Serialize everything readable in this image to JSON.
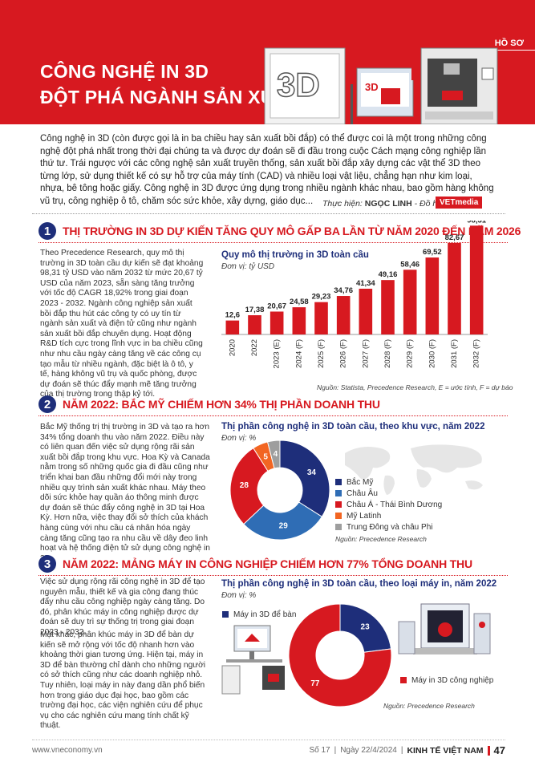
{
  "header": {
    "tag": "HỒ SƠ",
    "title_line1": "CÔNG NGHỆ IN 3D",
    "title_line2": "ĐỘT PHÁ NGÀNH SẢN XUẤT"
  },
  "intro": "Công nghệ in 3D (còn được gọi là in ba chiều hay sản xuất bồi đắp) có thể được coi là một trong những công nghệ đột phá nhất trong thời đại chúng ta và được dự đoán sẽ đi đầu trong cuộc Cách mạng công nghiệp lần thứ tư. Trái ngược với các công nghệ sản xuất truyền thống, sản xuất bồi đắp xây dựng các vật thể 3D theo từng lớp, sử dụng thiết kế có sự hỗ trợ của máy tính (CAD) và nhiều loại vật liệu, chẳng hạn như kim loại, nhựa, bê tông hoặc giấy. Công nghệ in 3D được ứng dụng trong nhiều ngành khác nhau, bao gồm hàng không vũ trụ, công nghiệp ô tô, chăm sóc sức khỏe, xây dựng, giáo dục...",
  "credit": {
    "label1": "Thực hiện:",
    "author": "NGỌC LINH",
    "label2": "- Đồ họa:",
    "brand": "VETmedia"
  },
  "section1": {
    "num": "1",
    "title": "THỊ TRƯỜNG IN 3D DỰ KIẾN TĂNG QUY MÔ GẤP BA LẦN TỪ NĂM 2020 ĐẾN NĂM 2026",
    "text": "Theo Precedence Research, quy mô thị trường in 3D toàn cầu dự kiến sẽ đạt khoảng 98,31 tỷ USD vào năm 2032 từ mức 20,67 tỷ USD của năm 2023, sẵn sàng tăng trưởng với tốc độ CAGR 18,92% trong giai đoạn 2023 - 2032. Ngành công nghiệp sản xuất bồi đắp thu hút các công ty có uy tín từ ngành sản xuất và điện tử cũng như ngành sản xuất bồi đắp chuyên dụng. Hoạt động R&D tích cực trong lĩnh vực in ba chiều cũng như nhu cầu ngày càng tăng về các công cụ tạo mẫu từ nhiều ngành, đặc biệt là ô tô, y tế, hàng không vũ trụ và quốc phòng, được dự đoán sẽ thúc đẩy mạnh mẽ tăng trưởng của thị trường trong thập kỷ tới.",
    "chart_title": "Quy mô thị trường in 3D toàn cầu",
    "chart_unit": "Đơn vị: tỷ USD",
    "source": "Nguồn: Statista, Precedence Research, E = ước tính, F = dự báo"
  },
  "section2": {
    "num": "2",
    "title": "NĂM 2022: BẮC MỸ CHIẾM HƠN 34% THỊ PHẦN DOANH THU",
    "text": "Bắc Mỹ thống trị thị trường in 3D và tạo ra hơn 34% tổng doanh thu vào năm 2022. Điều này có liên quan đến việc sử dụng rộng rãi sản xuất bồi đắp trong khu vực. Hoa Kỳ và Canada nằm trong số những quốc gia đi đầu cũng như triển khai ban đầu những đổi mới này trong nhiều quy trình sản xuất khác nhau. Máy theo dõi sức khỏe hay quần áo thông minh được dự đoán sẽ thúc đẩy công nghệ in 3D tại Hoa Kỳ. Hơn nữa, việc thay đổi sở thích của khách hàng cùng với nhu cầu cá nhân hóa ngày càng tăng cũng tạo ra nhu cầu về dây đeo linh hoạt và hệ thống điện tử sử dụng công nghệ in 3D.",
    "chart_title": "Thị phần công nghệ in 3D toàn cầu, theo khu vực, năm 2022",
    "chart_unit": "Đơn vị: %",
    "source": "Nguồn: Precedence Research"
  },
  "section3": {
    "num": "3",
    "title": "NĂM 2022: MẢNG MÁY IN CÔNG NGHIỆP CHIẾM HƠN 77% TỔNG DOANH THU",
    "text1": "Việc sử dụng rộng rãi công nghệ in 3D để tạo nguyên mẫu, thiết kế và gia công đang thúc đẩy nhu cầu công nghiệp ngày càng tăng. Do đó, phân khúc máy in công nghiệp được dự đoán sẽ duy trì sự thống trị trong giai đoạn 2023 - 2032.",
    "text2": "Mặt khác, phân khúc máy in 3D để bàn dự kiến sẽ mở rộng với tốc độ nhanh hơn vào khoảng thời gian tương ứng. Hiện tại, máy in 3D để bàn thường chỉ dành cho những người có sở thích cũng như các doanh nghiệp nhỏ. Tuy nhiên, loại máy in này đang dần phổ biến hơn trong giáo dục đại học, bao gồm các trường đại học, các viện nghiên cứu để phục vụ cho các nghiên cứu mang tính chất kỹ thuật.",
    "chart_title": "Thị phần công nghệ in 3D toàn cầu, theo loại máy in, năm 2022",
    "chart_unit": "Đơn vị: %",
    "source": "Nguồn: Precedence Research"
  },
  "footer": {
    "site": "www.vneconomy.vn",
    "issue": "Số 17",
    "date": "Ngày 22/4/2024",
    "magazine": "KINH TẾ VIỆT NAM",
    "page": "47"
  },
  "colors": {
    "red": "#d71920",
    "navy": "#1e2e7a",
    "blue": "#2f6db5",
    "light_blue": "#a9c4e6",
    "orange": "#f26522",
    "gray": "#9e9e9e"
  },
  "chart_data": [
    {
      "type": "bar",
      "title": "Quy mô thị trường in 3D toàn cầu",
      "ylabel": "Đơn vị: tỷ USD",
      "categories": [
        "2020",
        "2022",
        "2023 (E)",
        "2024 (F)",
        "2025 (F)",
        "2026 (F)",
        "2027 (F)",
        "2028 (F)",
        "2029 (F)",
        "2030 (F)",
        "2031 (F)",
        "2032 (F)"
      ],
      "values": [
        12.6,
        17.38,
        20.67,
        24.58,
        29.23,
        34.76,
        41.34,
        49.16,
        58.46,
        69.52,
        82.67,
        98.31
      ],
      "value_labels": [
        "12,6",
        "17,38",
        "20,67",
        "24,58",
        "29,23",
        "34,76",
        "41,34",
        "49,16",
        "58,46",
        "69,52",
        "82,67",
        "98,31"
      ],
      "ylim": [
        0,
        100
      ]
    },
    {
      "type": "pie",
      "donut": true,
      "title": "Thị phần công nghệ in 3D toàn cầu, theo khu vực, năm 2022",
      "slices": [
        {
          "name": "Bắc Mỹ",
          "value": 34,
          "color": "#1e2e7a"
        },
        {
          "name": "Châu Âu",
          "value": 29,
          "color": "#2f6db5"
        },
        {
          "name": "Châu Á - Thái Bình Dương",
          "value": 28,
          "color": "#d71920"
        },
        {
          "name": "Mỹ Latinh",
          "value": 5,
          "color": "#f26522"
        },
        {
          "name": "Trung Đông và châu Phi",
          "value": 4,
          "color": "#9e9e9e"
        }
      ]
    },
    {
      "type": "pie",
      "donut": true,
      "title": "Thị phần công nghệ in 3D toàn cầu, theo loại máy in, năm 2022",
      "slices": [
        {
          "name": "Máy in 3D để bàn",
          "value": 23,
          "color": "#1e2e7a"
        },
        {
          "name": "Máy in 3D công nghiệp",
          "value": 77,
          "color": "#d71920"
        }
      ]
    }
  ]
}
